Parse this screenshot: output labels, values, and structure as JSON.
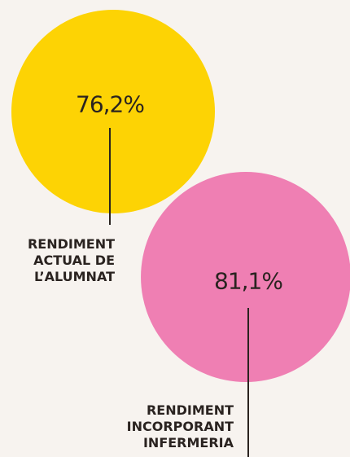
{
  "chart_data": {
    "type": "bubble",
    "categories": [
      "RENDIMENT\nACTUAL DE\nL’ALUMNAT",
      "RENDIMENT\nINCORPORANT\nINFERMERIA"
    ],
    "values": [
      76.2,
      81.1
    ],
    "value_labels": [
      "76,2%",
      "81,1%"
    ],
    "colors": [
      "#fdd304",
      "#ef7fb3"
    ]
  }
}
